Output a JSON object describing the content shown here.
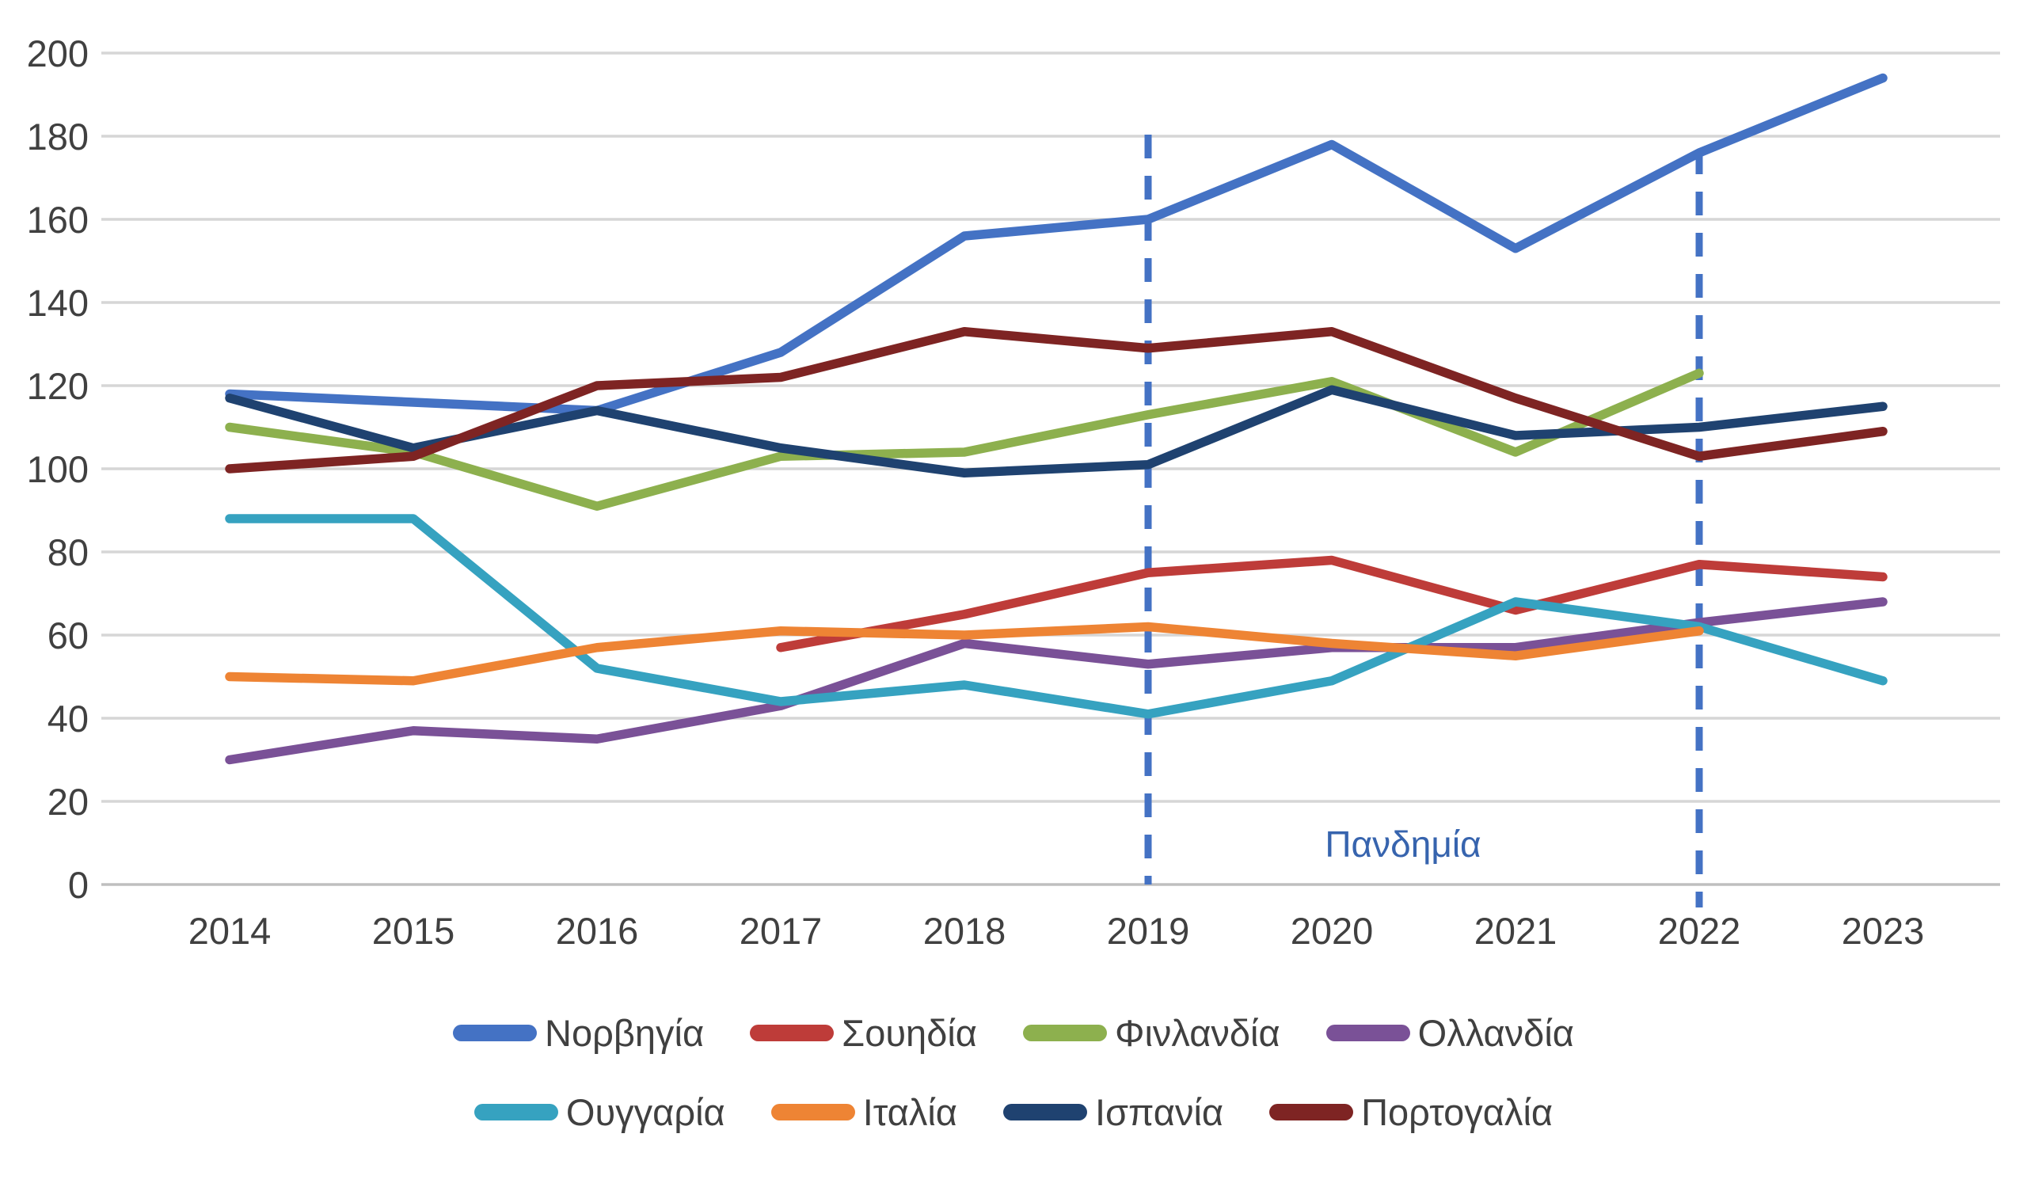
{
  "chart_data": {
    "type": "line",
    "title": "",
    "xlabel": "",
    "ylabel": "",
    "x": [
      2014,
      2015,
      2016,
      2017,
      2018,
      2019,
      2020,
      2021,
      2022,
      2023
    ],
    "ylim": [
      0,
      200
    ],
    "ytick_step": 20,
    "yticks": [
      0,
      20,
      40,
      60,
      80,
      100,
      120,
      140,
      160,
      180,
      200
    ],
    "grid": "horizontal",
    "series": [
      {
        "name": "Νορβηγία",
        "color": "#4472C4",
        "values": [
          118,
          116,
          114,
          128,
          156,
          160,
          178,
          153,
          176,
          194
        ]
      },
      {
        "name": "Σουηδία",
        "color": "#BE3C39",
        "values": [
          null,
          null,
          null,
          57,
          65,
          75,
          78,
          66,
          77,
          74
        ]
      },
      {
        "name": "Φινλανδία",
        "color": "#8DB04E",
        "values": [
          110,
          104,
          91,
          103,
          104,
          113,
          121,
          104,
          123,
          null
        ]
      },
      {
        "name": "Ολλανδία",
        "color": "#7A5197",
        "values": [
          30,
          37,
          35,
          43,
          58,
          53,
          57,
          57,
          63,
          68
        ]
      },
      {
        "name": "Ουγγαρία",
        "color": "#36A2C0",
        "values": [
          88,
          88,
          52,
          44,
          48,
          41,
          49,
          68,
          62,
          49
        ]
      },
      {
        "name": "Ιταλία",
        "color": "#EE8434",
        "values": [
          50,
          49,
          57,
          61,
          60,
          62,
          58,
          55,
          61,
          null
        ]
      },
      {
        "name": "Ισπανία",
        "color": "#1F4270",
        "values": [
          117,
          105,
          114,
          105,
          99,
          101,
          119,
          108,
          110,
          115
        ]
      },
      {
        "name": "Πορτογαλία",
        "color": "#7E2423",
        "values": [
          100,
          103,
          120,
          122,
          133,
          129,
          133,
          117,
          103,
          109
        ]
      }
    ],
    "legend": {
      "position": "bottom",
      "rows": [
        [
          0,
          1,
          2,
          3
        ],
        [
          4,
          5,
          6,
          7
        ]
      ]
    },
    "annotations": {
      "pandemic_label": "Πανδημία",
      "pandemic_label_color": "#3764AE",
      "dashed_line_years": [
        2019,
        2022
      ],
      "dashed_line_color": "#4472C4"
    },
    "colors": {
      "gridline": "#D6D6D6",
      "axis_line": "#BFBFBF",
      "tick_text": "#404040"
    }
  }
}
